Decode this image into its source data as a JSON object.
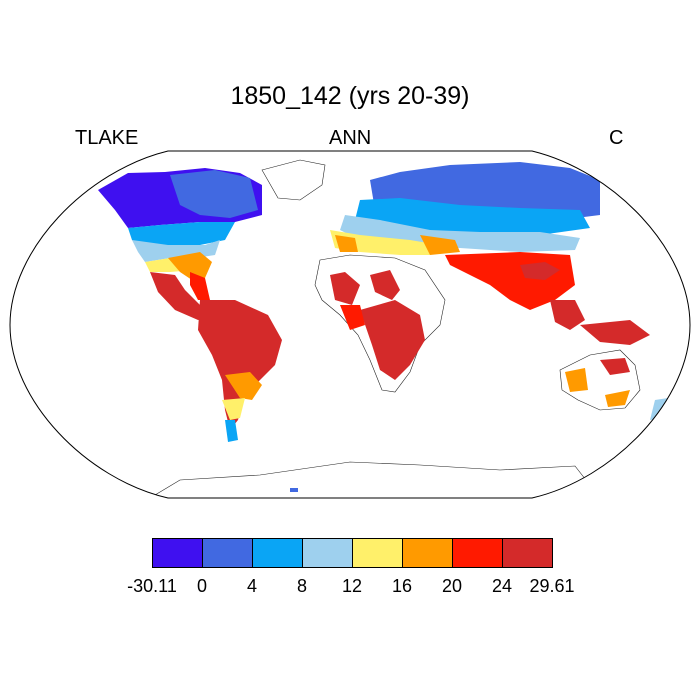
{
  "title": "1850_142 (yrs 20-39)",
  "label_left": "TLAKE",
  "label_center": "ANN",
  "label_right": "C",
  "colorbar": {
    "colors": [
      "#3f10f0",
      "#4169e1",
      "#0aa5f5",
      "#9ed0ee",
      "#fff06a",
      "#ff9a00",
      "#ff1a00",
      "#d42a2a"
    ],
    "ticks": [
      "-30.11",
      "0",
      "4",
      "8",
      "12",
      "16",
      "20",
      "24",
      "29.61"
    ]
  }
}
